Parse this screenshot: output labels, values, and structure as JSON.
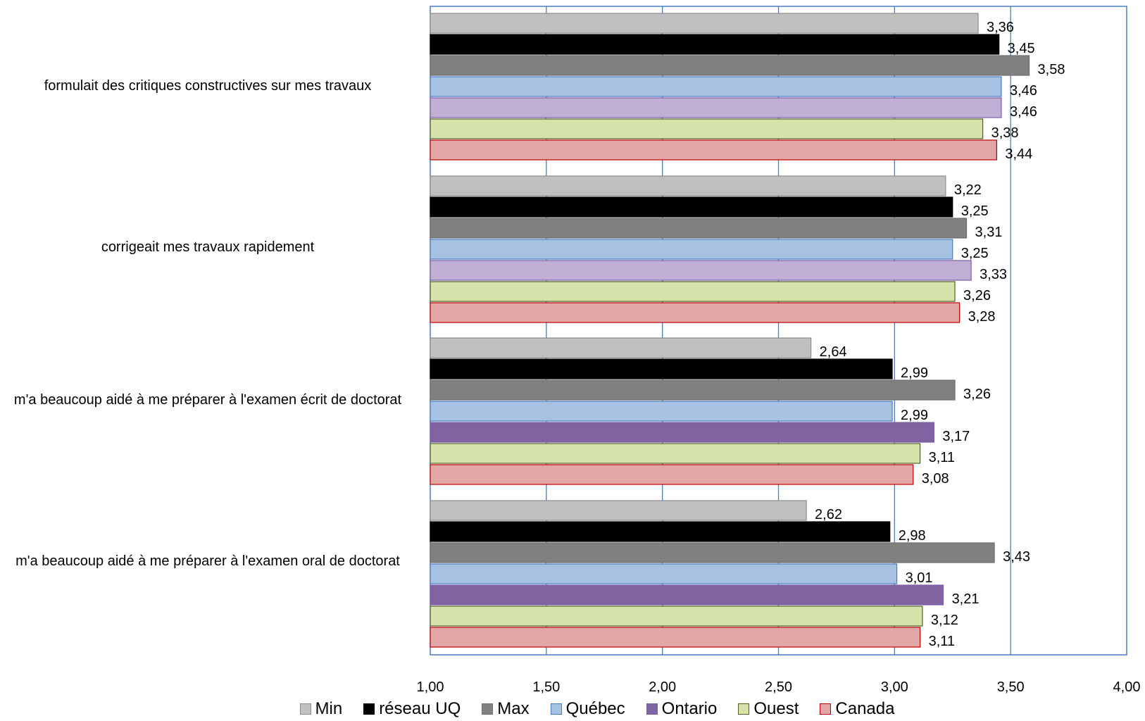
{
  "chart_data": {
    "type": "bar",
    "orientation": "horizontal",
    "categories": [
      "formulait des critiques constructives sur mes travaux",
      "corrigeait mes travaux  rapidement",
      "m'a beaucoup aidé à me  préparer à l'examen écrit de doctorat",
      "m'a beaucoup aidé à me  préparer à l'examen oral de doctorat"
    ],
    "series": [
      {
        "name": "Min",
        "color": "#c0c0c0",
        "border": "#8c8c8c",
        "values": [
          3.36,
          3.22,
          2.64,
          2.62
        ],
        "labels": [
          "3,36",
          "3,22",
          "2,64",
          "2,62"
        ]
      },
      {
        "name": "réseau UQ",
        "color": "#000000",
        "border": "#000000",
        "values": [
          3.45,
          3.25,
          2.99,
          2.98
        ],
        "labels": [
          "3,45",
          "3,25",
          "2,99",
          "2,98"
        ]
      },
      {
        "name": "Max",
        "color": "#808080",
        "border": "#6e6e6e",
        "values": [
          3.58,
          3.31,
          3.26,
          3.43
        ],
        "labels": [
          "3,58",
          "3,31",
          "3,26",
          "3,43"
        ]
      },
      {
        "name": "Québec",
        "color": "#a6c1e2",
        "border": "#4a7cc0",
        "values": [
          3.46,
          3.25,
          2.99,
          3.01
        ],
        "labels": [
          "3,46",
          "3,25",
          "2,99",
          "3,01"
        ]
      },
      {
        "name": "Ontario",
        "color": "#c0aed5",
        "border": "#7c5fa3",
        "values": [
          3.46,
          3.33,
          3.17,
          3.21
        ],
        "labels": [
          "3,46",
          "3,33",
          "3,17",
          "3,21"
        ],
        "fills": [
          "#c0aed5",
          "#c0aed5",
          "#8064a2",
          "#8064a2"
        ]
      },
      {
        "name": "Ouest",
        "color": "#d5e2a9",
        "border": "#4f6228",
        "values": [
          3.38,
          3.26,
          3.11,
          3.12
        ],
        "labels": [
          "3,38",
          "3,26",
          "3,11",
          "3,12"
        ]
      },
      {
        "name": "Canada",
        "color": "#e2a6a6",
        "border": "#c00000",
        "values": [
          3.44,
          3.28,
          3.08,
          3.11
        ],
        "labels": [
          "3,44",
          "3,28",
          "3,08",
          "3,11"
        ]
      }
    ],
    "xlim": [
      1.0,
      4.0
    ],
    "x_ticks": [
      1.0,
      1.5,
      2.0,
      2.5,
      3.0,
      3.5,
      4.0
    ],
    "x_tick_labels": [
      "1,00",
      "1,50",
      "2,00",
      "2,50",
      "3,00",
      "3,50",
      "4,00"
    ],
    "grid": true,
    "legend_position": "bottom"
  }
}
